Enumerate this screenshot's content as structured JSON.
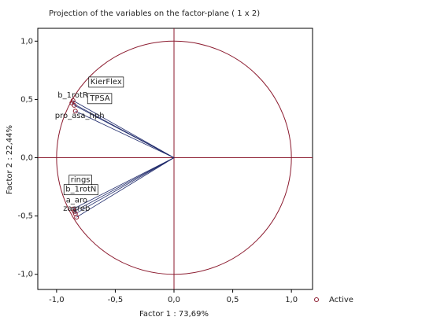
{
  "chart_data": {
    "type": "scatter",
    "title": "Projection of the variables on the factor-plane ( 1 x 2)",
    "x_label": "Factor 1 : 73,69%",
    "y_label": "Factor 2 : 22,44%",
    "xlim": [
      -1.16,
      1.18
    ],
    "ylim": [
      -1.13,
      1.11
    ],
    "xticks": [
      {
        "value": -1.0,
        "label": "-1,0"
      },
      {
        "value": -0.5,
        "label": "-0,5"
      },
      {
        "value": 0.0,
        "label": "0,0"
      },
      {
        "value": 0.5,
        "label": "0,5"
      },
      {
        "value": 1.0,
        "label": "1,0"
      }
    ],
    "yticks": [
      {
        "value": -1.0,
        "label": "-1,0"
      },
      {
        "value": -0.5,
        "label": "-0,5"
      },
      {
        "value": 0.0,
        "label": "0,0"
      },
      {
        "value": 0.5,
        "label": "0,5"
      },
      {
        "value": 1.0,
        "label": "1,0"
      }
    ],
    "legend_position": "bottom-right",
    "series": [
      {
        "name": "Active",
        "color": "#8b1a2e",
        "labels": [
          "KierFlex",
          "b_1rotR",
          "TPSA",
          "pro_asa_hph",
          "rings",
          "b_1rotN",
          "a_aro",
          "zagreb"
        ],
        "x": [
          -0.86,
          -0.87,
          -0.85,
          -0.84,
          -0.86,
          -0.85,
          -0.84,
          -0.83
        ],
        "values": [
          0.49,
          0.47,
          0.45,
          0.4,
          -0.44,
          -0.46,
          -0.48,
          -0.51
        ]
      }
    ]
  }
}
